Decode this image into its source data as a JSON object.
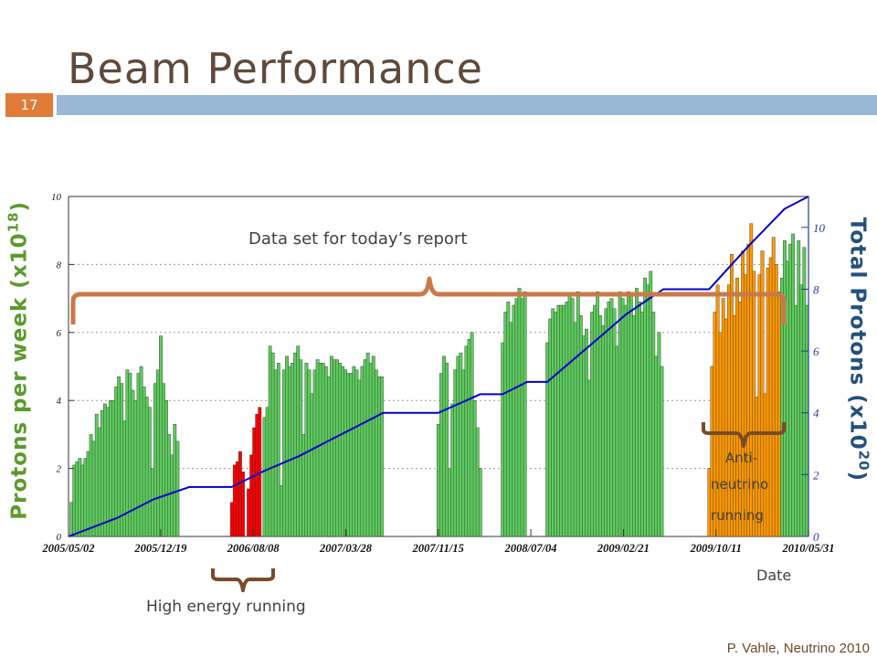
{
  "slide": {
    "title": "Beam Performance",
    "number": "17",
    "footer": "P. Vahle, Neutrino 2010"
  },
  "chart_data": {
    "type": "bar",
    "xlabel": "Date",
    "ylabel_main": "Protons per week (x10",
    "ylabel_main_exp": "18",
    "ylabel_right": "Total Protons (x10",
    "ylabel_right_exp": "20",
    "ylim": [
      0,
      10
    ],
    "y2lim": [
      0,
      11
    ],
    "y_ticks": [
      0,
      2,
      4,
      6,
      8,
      10
    ],
    "y2_ticks": [
      0,
      2,
      4,
      6,
      8,
      10
    ],
    "x_tick_labels": [
      "2005/05/02",
      "2005/12/19",
      "2006/08/08",
      "2007/03/28",
      "2007/11/15",
      "2008/07/04",
      "2009/02/21",
      "2009/10/11",
      "2010/05/31"
    ],
    "x_range": [
      "2005/05/02",
      "2010/05/31"
    ],
    "grid": "horizontal dotted",
    "series": [
      {
        "kind": "weekly-normal",
        "color": "#5dcc5d",
        "points": [
          [
            "2005/05/09",
            1.0
          ],
          [
            "2005/05/16",
            2.1
          ],
          [
            "2005/05/23",
            2.2
          ],
          [
            "2005/05/30",
            2.3
          ],
          [
            "2005/06/06",
            2.1
          ],
          [
            "2005/06/13",
            2.3
          ],
          [
            "2005/06/20",
            2.5
          ],
          [
            "2005/06/27",
            3.0
          ],
          [
            "2005/07/04",
            2.8
          ],
          [
            "2005/07/11",
            3.6
          ],
          [
            "2005/07/18",
            3.2
          ],
          [
            "2005/07/25",
            3.7
          ],
          [
            "2005/08/01",
            3.9
          ],
          [
            "2005/08/08",
            3.8
          ],
          [
            "2005/08/15",
            4.0
          ],
          [
            "2005/08/22",
            4.0
          ],
          [
            "2005/08/29",
            4.4
          ],
          [
            "2005/09/05",
            4.7
          ],
          [
            "2005/09/12",
            4.5
          ],
          [
            "2005/09/19",
            3.4
          ],
          [
            "2005/09/26",
            4.9
          ],
          [
            "2005/10/03",
            4.8
          ],
          [
            "2005/10/10",
            4.3
          ],
          [
            "2005/10/17",
            4.0
          ],
          [
            "2005/10/24",
            4.8
          ],
          [
            "2005/10/31",
            5.0
          ],
          [
            "2005/11/07",
            4.4
          ],
          [
            "2005/11/14",
            4.1
          ],
          [
            "2005/11/21",
            3.8
          ],
          [
            "2005/11/28",
            2.0
          ],
          [
            "2005/12/05",
            4.5
          ],
          [
            "2005/12/12",
            4.9
          ],
          [
            "2005/12/19",
            5.9
          ],
          [
            "2005/12/26",
            4.5
          ],
          [
            "2006/01/02",
            4.0
          ],
          [
            "2006/01/09",
            3.0
          ],
          [
            "2006/01/16",
            2.4
          ],
          [
            "2006/01/23",
            3.3
          ],
          [
            "2006/01/30",
            2.8
          ],
          [
            "2006/09/05",
            3.5
          ],
          [
            "2006/09/12",
            3.8
          ],
          [
            "2006/09/19",
            5.6
          ],
          [
            "2006/09/26",
            5.4
          ],
          [
            "2006/10/03",
            4.9
          ],
          [
            "2006/10/10",
            5.1
          ],
          [
            "2006/10/17",
            1.5
          ],
          [
            "2006/10/24",
            4.9
          ],
          [
            "2006/10/31",
            5.3
          ],
          [
            "2006/11/07",
            5.0
          ],
          [
            "2006/11/14",
            5.1
          ],
          [
            "2006/11/21",
            5.4
          ],
          [
            "2006/11/28",
            5.6
          ],
          [
            "2006/12/05",
            5.2
          ],
          [
            "2006/12/12",
            3.0
          ],
          [
            "2006/12/19",
            5.1
          ],
          [
            "2006/12/26",
            4.9
          ],
          [
            "2007/01/02",
            4.2
          ],
          [
            "2007/01/09",
            4.9
          ],
          [
            "2007/01/16",
            5.2
          ],
          [
            "2007/01/23",
            5.1
          ],
          [
            "2007/01/30",
            5.1
          ],
          [
            "2007/02/06",
            5.0
          ],
          [
            "2007/02/13",
            4.7
          ],
          [
            "2007/02/20",
            5.3
          ],
          [
            "2007/02/27",
            5.2
          ],
          [
            "2007/03/06",
            5.2
          ],
          [
            "2007/03/13",
            5.1
          ],
          [
            "2007/03/20",
            5.0
          ],
          [
            "2007/03/27",
            4.9
          ],
          [
            "2007/04/03",
            4.8
          ],
          [
            "2007/04/10",
            4.8
          ],
          [
            "2007/04/17",
            5.0
          ],
          [
            "2007/04/24",
            4.9
          ],
          [
            "2007/05/01",
            4.6
          ],
          [
            "2007/05/08",
            5.0
          ],
          [
            "2007/05/15",
            5.2
          ],
          [
            "2007/05/22",
            5.4
          ],
          [
            "2007/05/29",
            5.1
          ],
          [
            "2007/06/05",
            5.3
          ],
          [
            "2007/06/12",
            4.9
          ],
          [
            "2007/06/19",
            4.7
          ],
          [
            "2007/06/26",
            4.7
          ],
          [
            "2007/11/15",
            3.3
          ],
          [
            "2007/11/22",
            4.8
          ],
          [
            "2007/11/29",
            5.3
          ],
          [
            "2007/12/06",
            5.1
          ],
          [
            "2007/12/13",
            2.0
          ],
          [
            "2007/12/20",
            3.9
          ],
          [
            "2007/12/27",
            4.9
          ],
          [
            "2008/01/03",
            5.3
          ],
          [
            "2008/01/10",
            5.4
          ],
          [
            "2008/01/17",
            4.9
          ],
          [
            "2008/01/24",
            5.6
          ],
          [
            "2008/01/31",
            5.8
          ],
          [
            "2008/02/07",
            6.0
          ],
          [
            "2008/02/14",
            4.0
          ],
          [
            "2008/02/21",
            3.2
          ],
          [
            "2008/02/28",
            2.0
          ],
          [
            "2008/04/24",
            5.7
          ],
          [
            "2008/05/01",
            6.6
          ],
          [
            "2008/05/08",
            6.9
          ],
          [
            "2008/05/15",
            6.3
          ],
          [
            "2008/05/22",
            6.8
          ],
          [
            "2008/05/29",
            7.0
          ],
          [
            "2008/06/05",
            7.3
          ],
          [
            "2008/06/12",
            7.0
          ],
          [
            "2008/06/19",
            7.2
          ],
          [
            "2008/08/14",
            5.7
          ],
          [
            "2008/08/21",
            6.4
          ],
          [
            "2008/08/28",
            6.7
          ],
          [
            "2008/09/04",
            6.6
          ],
          [
            "2008/09/11",
            6.8
          ],
          [
            "2008/09/18",
            6.8
          ],
          [
            "2008/09/25",
            6.8
          ],
          [
            "2008/10/02",
            6.9
          ],
          [
            "2008/10/09",
            7.1
          ],
          [
            "2008/10/16",
            7.0
          ],
          [
            "2008/10/23",
            6.3
          ],
          [
            "2008/10/30",
            7.2
          ],
          [
            "2008/11/06",
            6.5
          ],
          [
            "2008/11/13",
            5.9
          ],
          [
            "2008/11/20",
            6.1
          ],
          [
            "2008/11/27",
            4.6
          ],
          [
            "2008/12/04",
            6.6
          ],
          [
            "2008/12/11",
            6.8
          ],
          [
            "2008/12/18",
            7.2
          ],
          [
            "2008/12/25",
            6.5
          ],
          [
            "2009/01/01",
            6.2
          ],
          [
            "2009/01/08",
            6.7
          ],
          [
            "2009/01/15",
            6.9
          ],
          [
            "2009/01/22",
            7.0
          ],
          [
            "2009/01/29",
            6.7
          ],
          [
            "2009/02/05",
            5.6
          ],
          [
            "2009/02/12",
            7.2
          ],
          [
            "2009/02/19",
            7.0
          ],
          [
            "2009/02/26",
            6.8
          ],
          [
            "2009/03/05",
            7.2
          ],
          [
            "2009/03/12",
            7.1
          ],
          [
            "2009/03/19",
            6.5
          ],
          [
            "2009/03/26",
            7.3
          ],
          [
            "2009/04/02",
            6.9
          ],
          [
            "2009/04/09",
            6.6
          ],
          [
            "2009/04/16",
            7.6
          ],
          [
            "2009/04/23",
            7.4
          ],
          [
            "2009/04/30",
            7.8
          ],
          [
            "2009/05/07",
            6.6
          ],
          [
            "2009/05/14",
            5.3
          ],
          [
            "2009/05/21",
            6.0
          ],
          [
            "2009/05/28",
            5.0
          ],
          [
            "2010/03/25",
            7.6
          ],
          [
            "2010/04/01",
            8.7
          ],
          [
            "2010/04/08",
            8.1
          ],
          [
            "2010/04/15",
            8.6
          ],
          [
            "2010/04/22",
            8.9
          ],
          [
            "2010/04/29",
            6.8
          ],
          [
            "2010/05/06",
            8.7
          ],
          [
            "2010/05/13",
            7.4
          ],
          [
            "2010/05/20",
            8.5
          ],
          [
            "2010/05/27",
            6.8
          ]
        ]
      },
      {
        "kind": "weekly-high-energy",
        "color": "#ff0000",
        "points": [
          [
            "2006/06/15",
            1.0
          ],
          [
            "2006/06/22",
            2.1
          ],
          [
            "2006/06/29",
            2.2
          ],
          [
            "2006/07/06",
            2.5
          ],
          [
            "2006/07/13",
            1.9
          ],
          [
            "2006/07/27",
            1.4
          ],
          [
            "2006/08/03",
            2.4
          ],
          [
            "2006/08/10",
            3.2
          ],
          [
            "2006/08/17",
            3.6
          ],
          [
            "2006/08/24",
            3.8
          ]
        ]
      },
      {
        "kind": "weekly-antineutrino",
        "color": "#ff9900",
        "points": [
          [
            "2009/09/24",
            2.0
          ],
          [
            "2009/10/01",
            5.0
          ],
          [
            "2009/10/08",
            6.6
          ],
          [
            "2009/10/15",
            7.4
          ],
          [
            "2009/10/22",
            6.0
          ],
          [
            "2009/10/29",
            7.0
          ],
          [
            "2009/11/05",
            6.4
          ],
          [
            "2009/11/12",
            7.4
          ],
          [
            "2009/11/19",
            8.3
          ],
          [
            "2009/11/26",
            6.5
          ],
          [
            "2009/12/03",
            7.6
          ],
          [
            "2009/12/10",
            6.9
          ],
          [
            "2009/12/17",
            8.4
          ],
          [
            "2009/12/24",
            7.7
          ],
          [
            "2009/12/31",
            8.6
          ],
          [
            "2010/01/07",
            9.2
          ],
          [
            "2010/01/14",
            7.8
          ],
          [
            "2010/01/21",
            4.1
          ],
          [
            "2010/01/28",
            7.7
          ],
          [
            "2010/02/04",
            8.4
          ],
          [
            "2010/02/11",
            4.2
          ],
          [
            "2010/02/18",
            7.9
          ],
          [
            "2010/02/25",
            8.2
          ],
          [
            "2010/03/04",
            8.8
          ],
          [
            "2010/03/11",
            8.0
          ],
          [
            "2010/03/18",
            7.2
          ]
        ]
      },
      {
        "kind": "cumulative",
        "color": "#0000cc",
        "points": [
          [
            "2005/05/02",
            0.0
          ],
          [
            "2005/09/01",
            0.6
          ],
          [
            "2005/12/01",
            1.2
          ],
          [
            "2006/03/01",
            1.6
          ],
          [
            "2006/06/15",
            1.6
          ],
          [
            "2006/09/01",
            2.1
          ],
          [
            "2006/12/01",
            2.6
          ],
          [
            "2007/03/01",
            3.2
          ],
          [
            "2007/06/30",
            4.0
          ],
          [
            "2007/11/15",
            4.0
          ],
          [
            "2008/02/28",
            4.6
          ],
          [
            "2008/04/24",
            4.6
          ],
          [
            "2008/06/25",
            5.0
          ],
          [
            "2008/08/14",
            5.0
          ],
          [
            "2008/12/01",
            6.2
          ],
          [
            "2009/03/01",
            7.2
          ],
          [
            "2009/06/01",
            8.0
          ],
          [
            "2009/09/24",
            8.0
          ],
          [
            "2010/01/01",
            9.4
          ],
          [
            "2010/04/01",
            10.6
          ],
          [
            "2010/05/31",
            11.0
          ]
        ]
      }
    ],
    "annotations": {
      "data_set": "Data set for today’s report",
      "antineutrino_line1": "Anti-",
      "antineutrino_line2": "neutrino",
      "antineutrino_line3": "running",
      "high_energy": "High energy running"
    }
  }
}
